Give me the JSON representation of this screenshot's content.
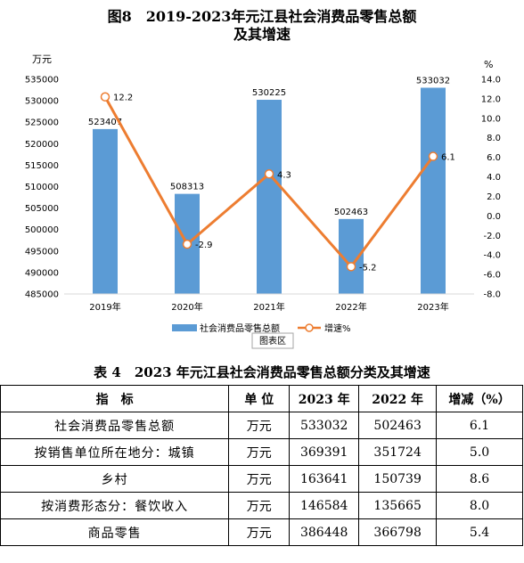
{
  "chart_data": {
    "type": "bar+line",
    "title_line1": "图8　2019-2023年元江县社会消费品零售总额",
    "title_line2": "及其增速",
    "left_unit": "万元",
    "right_unit": "%",
    "categories": [
      "2019年",
      "2020年",
      "2021年",
      "2022年",
      "2023年"
    ],
    "series": [
      {
        "name": "社会消费品零售总额",
        "type": "bar",
        "axis": "left",
        "values": [
          523407,
          508313,
          530225,
          502463,
          533032
        ],
        "color": "#5b9bd5"
      },
      {
        "name": "增速%",
        "type": "line",
        "axis": "right",
        "values": [
          12.2,
          -2.9,
          4.3,
          -5.2,
          6.1
        ],
        "color": "#ed7d31"
      }
    ],
    "left_ylim": [
      485000,
      535000
    ],
    "left_ticks": [
      "485000",
      "490000",
      "495000",
      "500000",
      "505000",
      "510000",
      "515000",
      "520000",
      "525000",
      "530000",
      "535000"
    ],
    "right_ylim": [
      -8.0,
      14.0
    ],
    "right_ticks": [
      "-8.0",
      "-6.0",
      "-4.0",
      "-2.0",
      "0.0",
      "2.0",
      "4.0",
      "6.0",
      "8.0",
      "10.0",
      "12.0",
      "14.0"
    ],
    "bar_labels": [
      "523407",
      "508313",
      "530225",
      "502463",
      "533032"
    ],
    "line_labels": [
      "12.2",
      "-2.9",
      "4.3",
      "-5.2",
      "6.1"
    ],
    "legend_bar": "社会消费品零售总额",
    "legend_line": "增速%",
    "chart_area_label": "图表区",
    "grid": false
  },
  "table": {
    "title": "表 4　2023 年元江县社会消费品零售总额分类及其增速",
    "headers": [
      "指　标",
      "单 位",
      "2023 年",
      "2022 年",
      "增减（%）"
    ],
    "rows": [
      {
        "name": "社会消费品零售总额",
        "unit": "万元",
        "y2023": "533032",
        "y2022": "502463",
        "change": "6.1"
      },
      {
        "name": "按销售单位所在地分：城镇",
        "unit": "万元",
        "y2023": "369391",
        "y2022": "351724",
        "change": "5.0"
      },
      {
        "name": "乡村",
        "unit": "万元",
        "y2023": "163641",
        "y2022": "150739",
        "change": "8.6"
      },
      {
        "name": "按消费形态分：餐饮收入",
        "unit": "万元",
        "y2023": "146584",
        "y2022": "135665",
        "change": "8.0"
      },
      {
        "name": "商品零售",
        "unit": "万元",
        "y2023": "386448",
        "y2022": "366798",
        "change": "5.4"
      }
    ]
  }
}
